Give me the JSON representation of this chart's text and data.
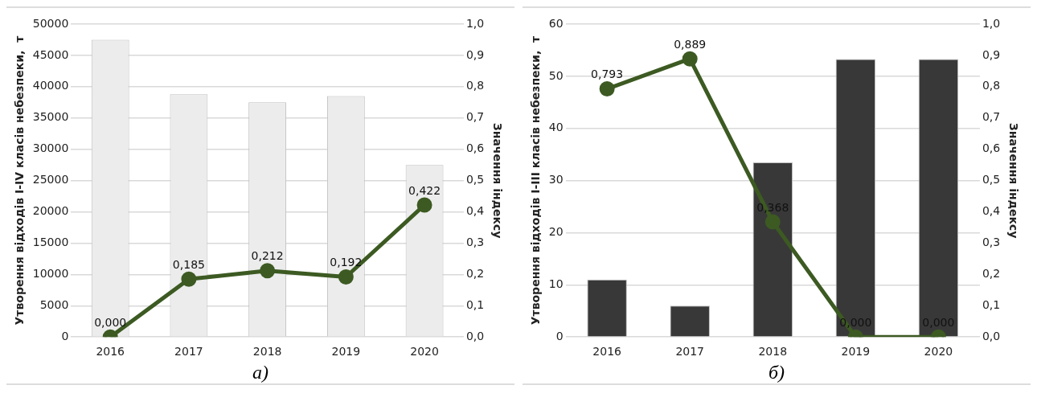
{
  "chart_data": [
    {
      "type": "bar",
      "categories": [
        "2016",
        "2017",
        "2018",
        "2019",
        "2020"
      ],
      "ylabel": "Утворення відходів I-IV класів небезпеки,  т",
      "y2label": "Значення індексу",
      "ylim": [
        0,
        50000
      ],
      "yticks": [
        0,
        5000,
        10000,
        15000,
        20000,
        25000,
        30000,
        35000,
        40000,
        45000,
        50000
      ],
      "y2lim": [
        0,
        1
      ],
      "y2ticks": [
        {
          "value": 0,
          "label": "0,0"
        },
        {
          "value": 0.1,
          "label": "0,1"
        },
        {
          "value": 0.2,
          "label": "0,2"
        },
        {
          "value": 0.3,
          "label": "0,3"
        },
        {
          "value": 0.4,
          "label": "0,4"
        },
        {
          "value": 0.5,
          "label": "0,5"
        },
        {
          "value": 0.6,
          "label": "0,6"
        },
        {
          "value": 0.7,
          "label": "0,7"
        },
        {
          "value": 0.8,
          "label": "0,8"
        },
        {
          "value": 0.9,
          "label": "0,9"
        },
        {
          "value": 1,
          "label": "1,0"
        }
      ],
      "grid": "y",
      "legend": false,
      "marker": "circle",
      "line_style": "solid",
      "annotations": [
        "а)"
      ],
      "series": [
        {
          "color": "#ececec",
          "values": [
            47500,
            38800,
            37500,
            38500,
            27500
          ]
        },
        {
          "type": "line",
          "axis": "y2",
          "color": "#3c5a22",
          "values": [
            0,
            0.185,
            0.212,
            0.192,
            0.422
          ],
          "value_labels": [
            "0,000",
            "0,185",
            "0,212",
            "0,192",
            "0,422"
          ]
        }
      ]
    },
    {
      "type": "bar",
      "categories": [
        "2016",
        "2017",
        "2018",
        "2019",
        "2020"
      ],
      "ylabel": "Утворення відходів I-III класів небезпеки,  т",
      "y2label": "Значення індексу",
      "ylim": [
        0,
        60
      ],
      "yticks": [
        0,
        10,
        20,
        30,
        40,
        50,
        60
      ],
      "y2lim": [
        0,
        1
      ],
      "y2ticks": [
        {
          "value": 0,
          "label": "0,0"
        },
        {
          "value": 0.1,
          "label": "0,1"
        },
        {
          "value": 0.2,
          "label": "0,2"
        },
        {
          "value": 0.3,
          "label": "0,3"
        },
        {
          "value": 0.4,
          "label": "0,4"
        },
        {
          "value": 0.5,
          "label": "0,5"
        },
        {
          "value": 0.6,
          "label": "0,6"
        },
        {
          "value": 0.7,
          "label": "0,7"
        },
        {
          "value": 0.8,
          "label": "0,8"
        },
        {
          "value": 0.9,
          "label": "0,9"
        },
        {
          "value": 1,
          "label": "1,0"
        }
      ],
      "grid": "y",
      "legend": false,
      "marker": "circle",
      "line_style": "solid",
      "annotations": [
        "б)"
      ],
      "series": [
        {
          "color": "#383838",
          "values": [
            11,
            6,
            33.5,
            53.3,
            53.3
          ]
        },
        {
          "type": "line",
          "axis": "y2",
          "color": "#3c5a22",
          "values": [
            0.793,
            0.889,
            0.368,
            0,
            0
          ],
          "value_labels": [
            "0,793",
            "0,889",
            "0,368",
            "0,000",
            "0,000"
          ]
        }
      ]
    }
  ]
}
